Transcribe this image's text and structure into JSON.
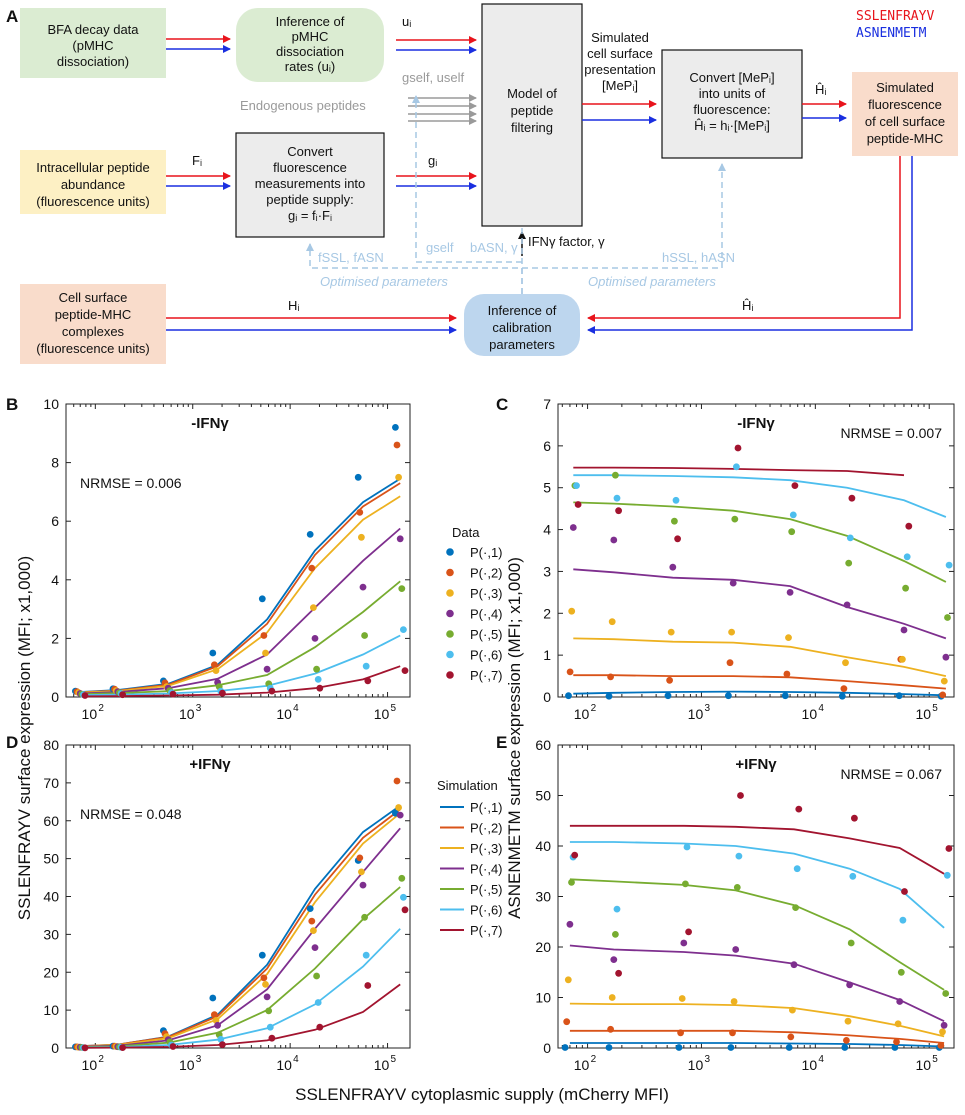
{
  "panelA": {
    "letter": "A",
    "seq_legend": [
      {
        "text": "SSLENFRAYV",
        "color": "#e8141c"
      },
      {
        "text": "ASNENMETM",
        "color": "#1a2fe0"
      }
    ],
    "boxes": {
      "bfa": [
        "BFA decay data",
        "(pMHC",
        "dissociation)"
      ],
      "inference_rates": [
        "Inference of",
        "pMHC",
        "dissociation",
        "rates (uᵢ)"
      ],
      "filtering": [
        "Model of",
        "peptide",
        "filtering"
      ],
      "convert_mep": [
        "Convert [MePᵢ]",
        "into units of",
        "fluorescence:",
        "Ĥᵢ = hᵢ·[MePᵢ]"
      ],
      "simulated": [
        "Simulated",
        "fluorescence",
        "of cell surface",
        "peptide-MHC"
      ],
      "intracellular": [
        "Intracellular peptide",
        "abundance",
        "(fluorescence units)"
      ],
      "convert_supply": [
        "Convert",
        "fluorescence",
        "measurements into",
        "peptide supply:",
        "gᵢ = fᵢ·Fᵢ"
      ],
      "cell_surface": [
        "Cell surface",
        "peptide-MHC",
        "complexes",
        "(fluorescence units)"
      ],
      "calibration": [
        "Inference of",
        "calibration",
        "parameters"
      ]
    },
    "labels": {
      "u_i": "uᵢ",
      "simulated_presentation": [
        "Simulated",
        "cell surface",
        "presentation",
        "[MePᵢ]"
      ],
      "h_hat": "Ĥᵢ",
      "g_self_u_self": "gself, uself",
      "endogenous": "Endogenous peptides",
      "F_i": "Fᵢ",
      "g_i": "gᵢ",
      "ifn_factor": "IFNγ factor, γ",
      "g_self": "gself",
      "b_asn": "bASN, γ",
      "f_params": "fSSL, fASN",
      "h_params": "hSSL, hASN",
      "optimised_left": "Optimised parameters",
      "optimised_right": "Optimised parameters",
      "H_i": "Hᵢ",
      "H_hat_bottom": "Ĥᵢ"
    }
  },
  "axes_text": {
    "ylabel_left": "SSLENFRAYV surface expression (MFI; x1,000)",
    "ylabel_right": "ASNENMETM surface expression (MFI; x1,000)",
    "xlabel": "SSLENFRAYV cytoplasmic supply (mCherry MFI)",
    "legend_data_title": "Data",
    "legend_sim_title": "Simulation",
    "legend_labels": [
      "P(·,1)",
      "P(·,2)",
      "P(·,3)",
      "P(·,4)",
      "P(·,5)",
      "P(·,6)",
      "P(·,7)"
    ]
  },
  "chart_data": [
    {
      "panel": "B",
      "type": "scatter+line",
      "title": "-IFNγ",
      "nrmse": "NRMSE = 0.006",
      "xscale": "log",
      "xlim": [
        50,
        170000
      ],
      "ylim": [
        0,
        10
      ],
      "yticks": [
        0,
        2,
        4,
        6,
        8,
        10
      ],
      "xticks": [
        100,
        1000,
        10000,
        100000
      ],
      "xtick_base": "10",
      "xtick_exps": [
        "2",
        "3",
        "4",
        "5"
      ],
      "colors": [
        "#0072bd",
        "#d95319",
        "#edb120",
        "#7e2f8e",
        "#77ac30",
        "#4dbeee",
        "#a2142f"
      ],
      "x": [
        70,
        170,
        560,
        1800,
        5800,
        18000,
        56000,
        135000
      ],
      "series": [
        {
          "name": "P(·,1)",
          "data": [
            0.2,
            0.28,
            0.55,
            1.5,
            3.35,
            5.55,
            7.5,
            9.2
          ],
          "fit": [
            0.17,
            0.24,
            0.45,
            1.1,
            2.65,
            5.0,
            6.65,
            7.45
          ]
        },
        {
          "name": "P(·,2)",
          "data": [
            0.18,
            0.27,
            0.48,
            1.1,
            2.1,
            4.4,
            6.3,
            8.6
          ],
          "fit": [
            0.16,
            0.22,
            0.42,
            1.05,
            2.5,
            4.85,
            6.5,
            7.3
          ]
        },
        {
          "name": "P(·,3)",
          "data": [
            0.15,
            0.22,
            0.35,
            0.9,
            1.5,
            3.05,
            5.45,
            7.5
          ],
          "fit": [
            0.15,
            0.2,
            0.38,
            0.95,
            2.2,
            4.4,
            6.05,
            6.85
          ]
        },
        {
          "name": "P(·,4)",
          "data": [
            0.12,
            0.18,
            0.3,
            0.5,
            0.95,
            2.0,
            3.75,
            5.4
          ],
          "fit": [
            0.12,
            0.17,
            0.3,
            0.62,
            1.45,
            3.05,
            4.65,
            5.75
          ]
        },
        {
          "name": "P(·,5)",
          "data": [
            0.1,
            0.15,
            0.22,
            0.35,
            0.45,
            0.95,
            2.1,
            3.7
          ],
          "fit": [
            0.1,
            0.13,
            0.2,
            0.4,
            0.75,
            1.7,
            2.9,
            3.95
          ]
        },
        {
          "name": "P(·,6)",
          "data": [
            0.08,
            0.12,
            0.15,
            0.2,
            0.3,
            0.6,
            1.05,
            2.3
          ],
          "fit": [
            0.06,
            0.08,
            0.12,
            0.2,
            0.38,
            0.8,
            1.45,
            2.1
          ]
        },
        {
          "name": "P(·,7)",
          "data": [
            0.05,
            0.08,
            0.1,
            0.13,
            0.2,
            0.3,
            0.55,
            0.9
          ],
          "fit": [
            0.02,
            0.03,
            0.05,
            0.08,
            0.15,
            0.3,
            0.6,
            1.05
          ]
        }
      ]
    },
    {
      "panel": "C",
      "type": "scatter+line",
      "title": "-IFNγ",
      "nrmse": "NRMSE = 0.007",
      "xscale": "log",
      "xlim": [
        55,
        165000
      ],
      "ylim": [
        0,
        7
      ],
      "yticks": [
        0,
        1,
        2,
        3,
        4,
        5,
        6,
        7
      ],
      "xticks": [
        100,
        1000,
        10000,
        100000
      ],
      "xtick_base": "10",
      "xtick_exps": [
        "2",
        "3",
        "4",
        "5"
      ],
      "colors": [
        "#0072bd",
        "#d95319",
        "#edb120",
        "#7e2f8e",
        "#77ac30",
        "#4dbeee",
        "#a2142f"
      ],
      "x": [
        75,
        170,
        560,
        1900,
        6000,
        19000,
        60000,
        140000
      ],
      "series": [
        {
          "name": "P(·,1)",
          "data": [
            0.03,
            0.02,
            0.03,
            0.03,
            0.03,
            0.02,
            0.03,
            0.02
          ],
          "fit": [
            0.08,
            0.1,
            0.12,
            0.13,
            0.12,
            0.1,
            0.07,
            0.04
          ]
        },
        {
          "name": "P(·,2)",
          "data": [
            0.6,
            0.48,
            0.4,
            0.82,
            0.55,
            0.2,
            0.9,
            0.05
          ],
          "fit": [
            0.52,
            0.52,
            0.5,
            0.5,
            0.47,
            0.38,
            0.28,
            0.2
          ]
        },
        {
          "name": "P(·,3)",
          "data": [
            2.05,
            1.8,
            1.55,
            1.55,
            1.42,
            0.82,
            0.9,
            0.38
          ],
          "fit": [
            1.4,
            1.38,
            1.32,
            1.3,
            1.2,
            0.95,
            0.72,
            0.5
          ]
        },
        {
          "name": "P(·,4)",
          "data": [
            4.05,
            3.75,
            3.1,
            2.72,
            2.5,
            2.2,
            1.6,
            0.95
          ],
          "fit": [
            3.05,
            2.98,
            2.85,
            2.8,
            2.65,
            2.15,
            1.75,
            1.4
          ]
        },
        {
          "name": "P(·,5)",
          "data": [
            5.05,
            5.3,
            4.2,
            4.25,
            3.95,
            3.2,
            2.6,
            1.9
          ],
          "fit": [
            4.65,
            4.62,
            4.55,
            4.45,
            4.25,
            3.85,
            3.25,
            2.75
          ]
        },
        {
          "name": "P(·,6)",
          "data": [
            5.05,
            4.75,
            4.7,
            5.5,
            4.35,
            3.8,
            3.35,
            3.15
          ],
          "fit": [
            5.3,
            5.3,
            5.28,
            5.25,
            5.18,
            5.0,
            4.7,
            4.3
          ]
        },
        {
          "name": "P(·,7)",
          "data": [
            4.6,
            4.45,
            3.78,
            5.95,
            5.05,
            4.75,
            4.08,
            null
          ],
          "fit": [
            5.48,
            5.48,
            5.47,
            5.45,
            5.42,
            5.4,
            5.3,
            null
          ]
        }
      ]
    },
    {
      "panel": "D",
      "type": "scatter+line",
      "title": "+IFNγ",
      "nrmse": "NRMSE = 0.048",
      "xscale": "log",
      "xlim": [
        50,
        170000
      ],
      "ylim": [
        0,
        80
      ],
      "yticks": [
        0,
        10,
        20,
        30,
        40,
        50,
        60,
        70,
        80
      ],
      "xticks": [
        100,
        1000,
        10000,
        100000
      ],
      "xtick_base": "10",
      "xtick_exps": [
        "2",
        "3",
        "4",
        "5"
      ],
      "colors": [
        "#0072bd",
        "#d95319",
        "#edb120",
        "#7e2f8e",
        "#77ac30",
        "#4dbeee",
        "#a2142f"
      ],
      "x": [
        70,
        170,
        560,
        1800,
        5800,
        18000,
        56000,
        135000
      ],
      "series": [
        {
          "name": "P(·,1)",
          "data": [
            0.3,
            0.5,
            4.6,
            13.2,
            24.5,
            36.8,
            49.5,
            62.0
          ],
          "fit": [
            0.5,
            0.9,
            3.0,
            8.8,
            22.0,
            42.0,
            57.0,
            64.0
          ]
        },
        {
          "name": "P(·,2)",
          "data": [
            0.3,
            0.5,
            3.8,
            8.8,
            18.5,
            33.5,
            50.2,
            70.5
          ],
          "fit": [
            0.5,
            0.9,
            2.9,
            8.4,
            21.0,
            40.5,
            55.5,
            63.0
          ]
        },
        {
          "name": "P(·,3)",
          "data": [
            0.2,
            0.4,
            3.0,
            7.3,
            16.8,
            31.0,
            46.5,
            63.5
          ],
          "fit": [
            0.45,
            0.8,
            2.6,
            7.6,
            19.5,
            38.5,
            54.0,
            62.0
          ]
        },
        {
          "name": "P(·,4)",
          "data": [
            0.2,
            0.35,
            2.2,
            6.0,
            13.5,
            26.5,
            43.0,
            61.5
          ],
          "fit": [
            0.35,
            0.6,
            2.0,
            6.0,
            15.5,
            31.5,
            46.5,
            58.0
          ]
        },
        {
          "name": "P(·,5)",
          "data": [
            0.15,
            0.3,
            1.6,
            3.5,
            9.8,
            19.0,
            34.5,
            44.8
          ],
          "fit": [
            0.25,
            0.45,
            1.4,
            4.0,
            10.0,
            21.0,
            34.0,
            42.5
          ]
        },
        {
          "name": "P(·,6)",
          "data": [
            0.1,
            0.2,
            0.8,
            2.3,
            5.5,
            12.0,
            24.5,
            39.8
          ],
          "fit": [
            0.15,
            0.25,
            0.8,
            2.2,
            5.2,
            11.5,
            21.5,
            31.5
          ]
        },
        {
          "name": "P(·,7)",
          "data": [
            0.05,
            0.1,
            0.4,
            0.9,
            2.6,
            5.5,
            16.5,
            36.5
          ],
          "fit": [
            0.05,
            0.1,
            0.3,
            0.8,
            2.0,
            4.8,
            9.5,
            16.8
          ]
        }
      ]
    },
    {
      "panel": "E",
      "type": "scatter+line",
      "title": "+IFNγ",
      "nrmse": "NRMSE = 0.067",
      "xscale": "log",
      "xlim": [
        55,
        165000
      ],
      "ylim": [
        0,
        60
      ],
      "yticks": [
        0,
        10,
        20,
        30,
        40,
        50,
        60
      ],
      "xticks": [
        100,
        1000,
        10000,
        100000
      ],
      "xtick_base": "10",
      "xtick_exps": [
        "2",
        "3",
        "4",
        "5"
      ],
      "colors": [
        "#0072bd",
        "#d95319",
        "#edb120",
        "#7e2f8e",
        "#77ac30",
        "#4dbeee",
        "#a2142f"
      ],
      "x": [
        70,
        170,
        700,
        2000,
        6500,
        20000,
        55000,
        135000
      ],
      "series": [
        {
          "name": "P(·,1)",
          "data": [
            0.1,
            0.1,
            0.1,
            0.1,
            0.1,
            0.1,
            0.1,
            0.1
          ],
          "fit": [
            1.0,
            1.0,
            1.0,
            1.0,
            0.9,
            0.8,
            0.6,
            0.3
          ]
        },
        {
          "name": "P(·,2)",
          "data": [
            5.2,
            3.7,
            3.0,
            3.0,
            2.2,
            1.5,
            1.2,
            0.5
          ],
          "fit": [
            3.4,
            3.4,
            3.4,
            3.4,
            3.1,
            2.5,
            1.8,
            1.0
          ]
        },
        {
          "name": "P(·,3)",
          "data": [
            13.5,
            10.0,
            9.8,
            9.2,
            7.5,
            5.3,
            4.8,
            3.2
          ],
          "fit": [
            8.8,
            8.7,
            8.7,
            8.5,
            7.9,
            6.3,
            4.4,
            2.3
          ]
        },
        {
          "name": "P(·,4)",
          "data": [
            24.5,
            17.5,
            20.8,
            19.5,
            16.5,
            12.5,
            9.2,
            4.5
          ],
          "fit": [
            20.3,
            19.5,
            19.0,
            18.3,
            16.7,
            13.0,
            9.5,
            5.3
          ]
        },
        {
          "name": "P(·,5)",
          "data": [
            32.8,
            22.5,
            32.5,
            31.8,
            27.8,
            20.8,
            15.0,
            10.8
          ],
          "fit": [
            33.4,
            33.0,
            32.3,
            31.2,
            28.3,
            23.5,
            17.0,
            11.5
          ]
        },
        {
          "name": "P(·,6)",
          "data": [
            37.8,
            27.5,
            39.8,
            38.0,
            35.5,
            34.0,
            25.3,
            34.2
          ],
          "fit": [
            40.8,
            40.8,
            40.5,
            40.0,
            38.5,
            35.5,
            31.5,
            23.8
          ]
        },
        {
          "name": "P(·,7)",
          "data": [
            38.2,
            14.8,
            23.0,
            50.0,
            47.3,
            45.5,
            31.0,
            39.5
          ],
          "fit": [
            44.0,
            44.0,
            44.0,
            43.8,
            43.3,
            41.5,
            39.6,
            34.5
          ]
        }
      ]
    }
  ]
}
